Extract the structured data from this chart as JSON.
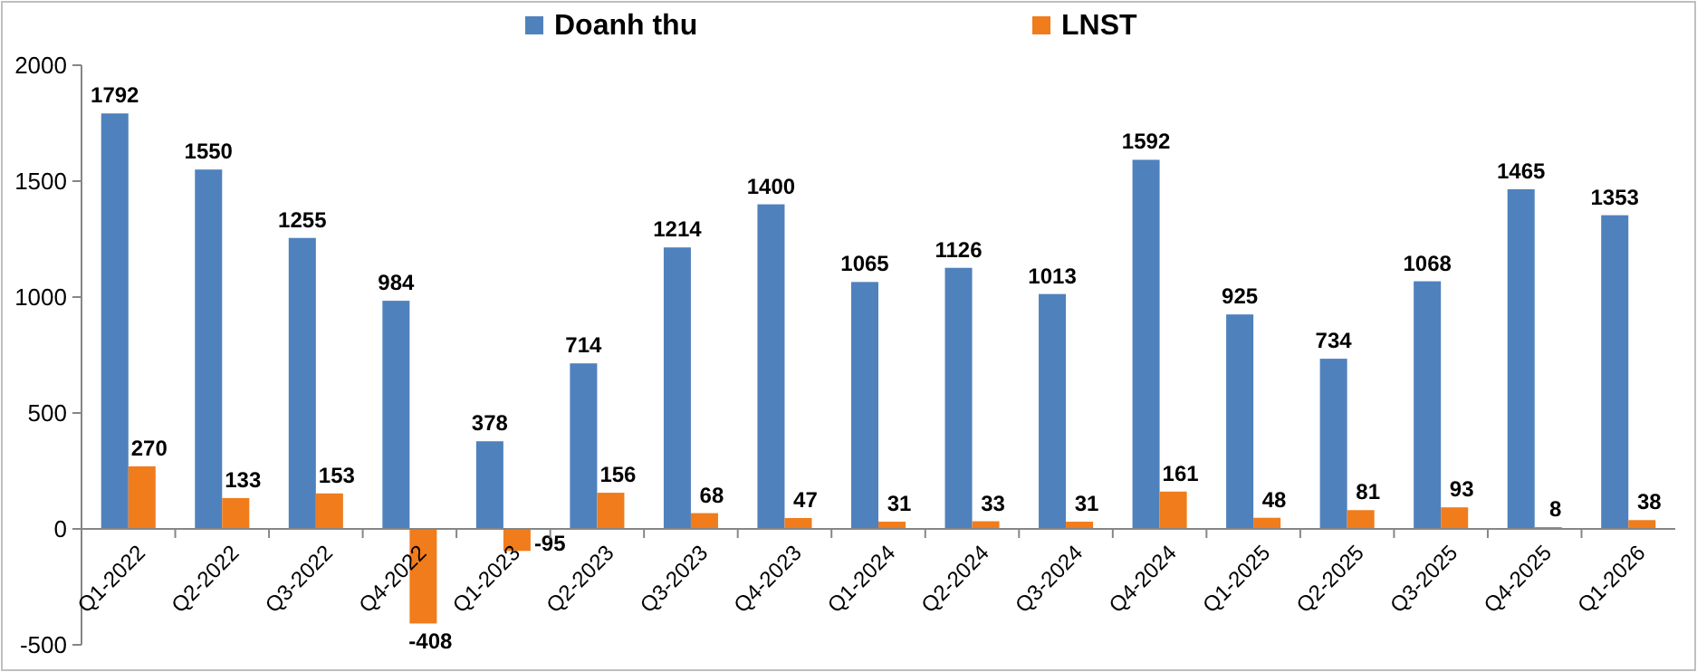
{
  "chart_data": {
    "type": "bar",
    "categories": [
      "Q1-2022",
      "Q2-2022",
      "Q3-2022",
      "Q4-2022",
      "Q1-2023",
      "Q2-2023",
      "Q3-2023",
      "Q4-2023",
      "Q1-2024",
      "Q2-2024",
      "Q3-2024",
      "Q4-2024",
      "Q1-2025",
      "Q2-2025",
      "Q3-2025",
      "Q4-2025",
      "Q1-2026"
    ],
    "series": [
      {
        "name": "Doanh thu",
        "color": "#4f81bd",
        "values": [
          1792,
          1550,
          1255,
          984,
          378,
          714,
          1214,
          1400,
          1065,
          1126,
          1013,
          1592,
          925,
          734,
          1068,
          1465,
          1353
        ]
      },
      {
        "name": "LNST",
        "color": "#f07c1c",
        "values": [
          270,
          133,
          153,
          -408,
          -95,
          156,
          68,
          47,
          31,
          33,
          31,
          161,
          48,
          81,
          93,
          8,
          38
        ]
      }
    ],
    "ylim": [
      -500,
      2000
    ],
    "yticks": [
      -500,
      0,
      500,
      1000,
      1500,
      2000
    ],
    "data_labels": true,
    "legend": "top",
    "grid": false
  }
}
